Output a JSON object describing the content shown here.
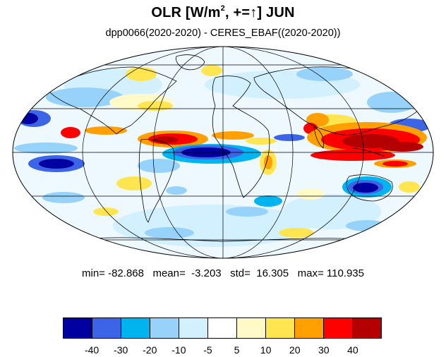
{
  "header": {
    "title_prefix": "OLR [W/m",
    "title_sup": "2",
    "title_suffix": ", +=↑] JUN",
    "subtitle": "dpp0066(2020-2020) - CERES_EBAF((2020-2020))"
  },
  "stats": {
    "text": "min= -82.868   mean=  -3.203   std=  16.305   max= 110.935"
  },
  "colorbar": {
    "colors": [
      "#0000a0",
      "#3c64e6",
      "#00b4f0",
      "#96d2fa",
      "#d2f0ff",
      "#ffffff",
      "#fffac8",
      "#ffe650",
      "#ffa000",
      "#ff0000",
      "#b40000"
    ],
    "labels": [
      "-40",
      "-30",
      "-20",
      "-10",
      "-5",
      "5",
      "10",
      "20",
      "30",
      "40"
    ]
  },
  "map": {
    "projection": "mollweide",
    "colors": {
      "deep_blue": "#0000a0",
      "blue": "#3c64e6",
      "cyan": "#00b4f0",
      "light_blue": "#96d2fa",
      "pale_blue": "#d2f0ff",
      "pale_yellow": "#fffac8",
      "yellow": "#ffe650",
      "orange": "#ffa000",
      "red": "#ff0000",
      "dark_red": "#b40000"
    }
  }
}
